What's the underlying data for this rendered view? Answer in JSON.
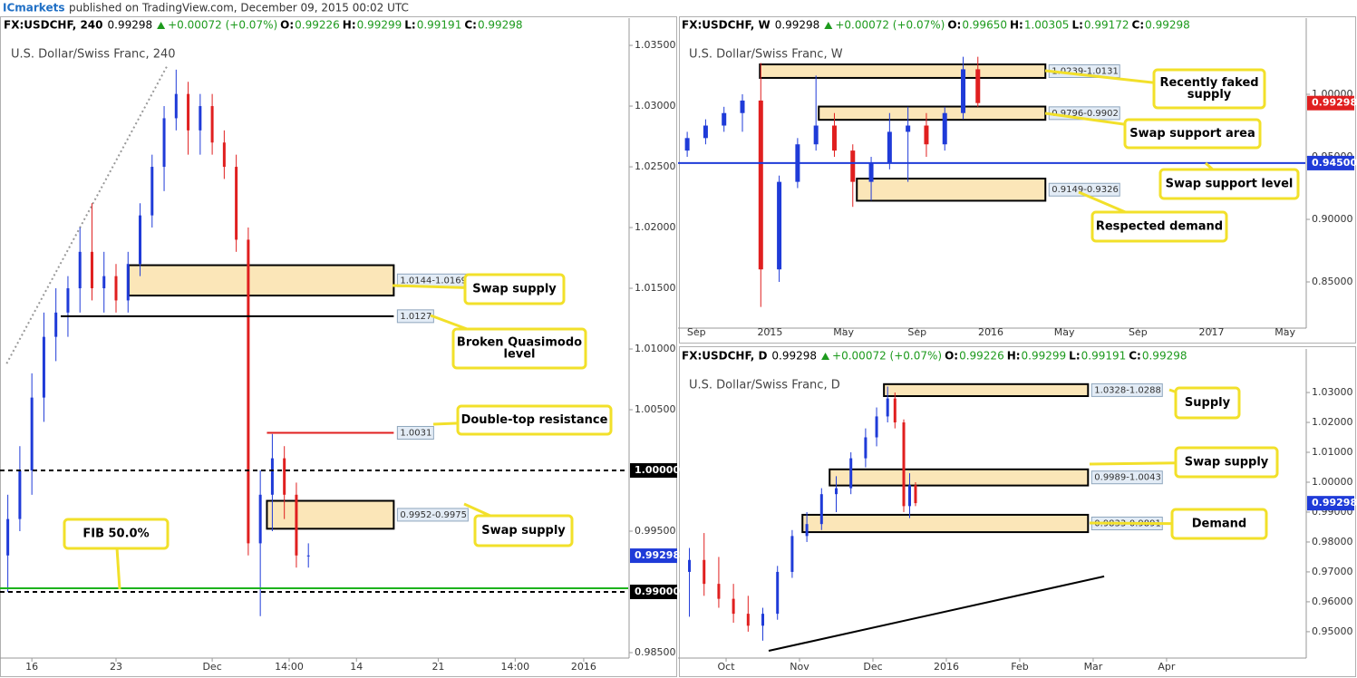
{
  "header": {
    "brand": "ICmarkets",
    "text": "published on TradingView.com, December 09, 2015 00:02 UTC"
  },
  "chart_data": [
    {
      "type": "candlestick",
      "title": "U.S. Dollar/Swiss Franc, 240",
      "quote": {
        "symbol": "FX:USDCHF, 240",
        "price": "0.99298",
        "change": "+0.00072 (+0.07%)",
        "fields": [
          [
            "O:",
            "0.99226"
          ],
          [
            "H:",
            "0.99299"
          ],
          [
            "L:",
            "0.99191"
          ],
          [
            "C:",
            "0.99298"
          ]
        ]
      },
      "x": [
        14,
        15,
        16,
        17,
        18,
        19,
        20,
        21,
        22,
        23,
        24,
        25,
        26,
        27,
        28,
        29,
        30,
        31,
        32,
        33,
        34,
        35,
        36,
        37,
        38,
        39
      ],
      "open": [
        0.993,
        0.996,
        1.0,
        1.006,
        1.011,
        1.013,
        1.015,
        1.018,
        1.015,
        1.016,
        1.014,
        1.017,
        1.021,
        1.025,
        1.029,
        1.031,
        1.028,
        1.03,
        1.027,
        1.025,
        1.019,
        0.994,
        0.998,
        1.001,
        0.998,
        0.993
      ],
      "high": [
        0.998,
        1.002,
        1.008,
        1.013,
        1.015,
        1.016,
        1.02,
        1.022,
        1.018,
        1.017,
        1.018,
        1.022,
        1.026,
        1.03,
        1.033,
        1.032,
        1.031,
        1.031,
        1.028,
        1.026,
        1.02,
        1.0,
        1.003,
        1.002,
        0.999,
        0.994
      ],
      "low": [
        0.99,
        0.995,
        0.998,
        1.004,
        1.009,
        1.011,
        1.013,
        1.014,
        1.013,
        1.013,
        1.013,
        1.016,
        1.02,
        1.023,
        1.028,
        1.026,
        1.026,
        1.026,
        1.024,
        1.018,
        0.993,
        0.988,
        0.995,
        0.996,
        0.992,
        0.992
      ],
      "close": [
        0.996,
        1.0,
        1.006,
        1.011,
        1.013,
        1.015,
        1.018,
        1.015,
        1.016,
        1.014,
        1.017,
        1.021,
        1.025,
        1.029,
        1.031,
        1.028,
        1.03,
        1.027,
        1.025,
        1.019,
        0.994,
        0.998,
        1.001,
        0.998,
        0.993,
        0.993
      ],
      "xlim": [
        13.5,
        65.6
      ],
      "ylim": [
        0.985,
        1.03575
      ],
      "xticks": [
        16,
        23,
        {
          "value": 31,
          "label": "Dec"
        },
        {
          "value": 37.4,
          "label": "14:00"
        },
        {
          "value": 43,
          "label": "14"
        },
        {
          "value": 49.8,
          "label": "21"
        },
        {
          "value": 56.2,
          "label": "14:00"
        },
        {
          "value": 61.9,
          "label": "2016"
        }
      ],
      "yticks": [
        {
          "value": 1.035,
          "label": "1.03500"
        },
        {
          "value": 1.03,
          "label": "1.03000"
        },
        {
          "value": 1.025,
          "label": "1.02500"
        },
        {
          "value": 1.02,
          "label": "1.02000"
        },
        {
          "value": 1.015,
          "label": "1.01500"
        },
        {
          "value": 1.01,
          "label": "1.01000"
        },
        {
          "value": 1.005,
          "label": "1.00500"
        },
        {
          "value": 0.995,
          "label": "0.99500"
        },
        {
          "value": 0.985,
          "label": "0.98500"
        }
      ],
      "up_color": "#1f3bd8",
      "down_color": "#e01f1f",
      "zones": [
        {
          "label": "1.0144-1.0169",
          "low": 1.0144,
          "high": 1.0169,
          "x0": 24.05,
          "x1": 46.1
        },
        {
          "label": "0.9952-0.9975",
          "low": 0.9952,
          "high": 0.9975,
          "x0": 35.55,
          "x1": 46.1
        }
      ],
      "levels": [
        {
          "value": 1.0,
          "color": "#000000",
          "dash": true
        },
        {
          "value": 0.99,
          "color": "#000000",
          "dash": true
        },
        {
          "value": 0.9903,
          "color": "#1db31d",
          "dash": false
        },
        {
          "value": 1.0031,
          "color": "#e01f1f",
          "dash": false,
          "x0": 35.55,
          "x1": 46.1
        },
        {
          "value": 1.0127,
          "color": "#000000",
          "dash": false,
          "x0": 18.4,
          "x1": 46.1
        }
      ],
      "trendlines": [
        {
          "x": [
            13.9,
            27.3
          ],
          "y": [
            1.0088,
            1.0334
          ],
          "color": "#999999",
          "dash": true
        }
      ],
      "price_tags": [
        {
          "value": 1.0,
          "label": "1.00000",
          "color": "#000000"
        },
        {
          "value": 0.99,
          "label": "0.99000",
          "color": "#000000"
        },
        {
          "value": 0.99298,
          "label": "0.99298",
          "color": "#1f3bd8"
        }
      ],
      "callouts": [
        {
          "lines": [
            "Swap supply"
          ]
        },
        {
          "lines": [
            "Broken Quasimodo",
            "level"
          ]
        },
        {
          "lines": [
            "Double-top resistance"
          ]
        },
        {
          "lines": [
            "Swap supply"
          ]
        },
        {
          "lines": [
            "FIB 50.0%"
          ]
        }
      ]
    },
    {
      "type": "candlestick",
      "title": "U.S. Dollar/Swiss Franc, W",
      "quote": {
        "symbol": "FX:USDCHF, W",
        "price": "0.99298",
        "change": "+0.00072 (+0.07%)",
        "fields": [
          [
            "O:",
            "0.99650"
          ],
          [
            "H:",
            "1.00305"
          ],
          [
            "L:",
            "0.99172"
          ],
          [
            "C:",
            "0.99298"
          ]
        ]
      },
      "x": [
        -0.5,
        0.5,
        1.5,
        2.5,
        3.5,
        4.5,
        5.5,
        6.5,
        7.5,
        8.5,
        9.5,
        10.5,
        11.5,
        12.5,
        13.5,
        14.5,
        15.3
      ],
      "open": [
        0.955,
        0.965,
        0.975,
        0.985,
        0.995,
        0.86,
        0.93,
        0.96,
        0.975,
        0.955,
        0.93,
        0.945,
        0.97,
        0.975,
        0.96,
        0.985,
        1.02
      ],
      "high": [
        0.97,
        0.98,
        0.99,
        1.0,
        1.025,
        0.935,
        0.965,
        1.015,
        0.985,
        0.96,
        0.95,
        0.985,
        0.99,
        0.985,
        0.99,
        1.03,
        1.03
      ],
      "low": [
        0.95,
        0.96,
        0.97,
        0.97,
        0.83,
        0.85,
        0.925,
        0.955,
        0.95,
        0.91,
        0.915,
        0.94,
        0.93,
        0.95,
        0.955,
        0.98,
        0.99
      ],
      "close": [
        0.965,
        0.975,
        0.985,
        0.995,
        0.86,
        0.93,
        0.96,
        0.975,
        0.955,
        0.93,
        0.945,
        0.97,
        0.975,
        0.96,
        0.985,
        1.02,
        0.993
      ],
      "xlim": [
        -0.9,
        33.1
      ],
      "ylim": [
        0.8174,
        1.0464
      ],
      "xticks": [
        {
          "value": 0,
          "label": "Sep"
        },
        {
          "value": 4,
          "label": "2015"
        },
        {
          "value": 8,
          "label": "May"
        },
        {
          "value": 12,
          "label": "Sep"
        },
        {
          "value": 16,
          "label": "2016"
        },
        {
          "value": 20,
          "label": "May"
        },
        {
          "value": 24,
          "label": "Sep"
        },
        {
          "value": 28,
          "label": "2017"
        },
        {
          "value": 32,
          "label": "May"
        }
      ],
      "yticks": [
        {
          "value": 1.0,
          "label": "1.00000"
        },
        {
          "value": 0.95,
          "label": "0.95000"
        },
        {
          "value": 0.9,
          "label": "0.90000"
        },
        {
          "value": 0.85,
          "label": "0.85000"
        }
      ],
      "up_color": "#1f3bd8",
      "down_color": "#e01f1f",
      "zones": [
        {
          "label": "1.0239-1.0131",
          "low": 1.0131,
          "high": 1.0239,
          "x0": 3.45,
          "x1": 18.97
        },
        {
          "label": "0.9796-0.9902",
          "low": 0.9796,
          "high": 0.9902,
          "x0": 6.65,
          "x1": 18.97
        },
        {
          "label": "0.9149-0.9326",
          "low": 0.9149,
          "high": 0.9326,
          "x0": 8.72,
          "x1": 18.97
        }
      ],
      "levels": [
        {
          "value": 0.945,
          "color": "#1f3bd8",
          "dash": false
        }
      ],
      "trendlines": [],
      "price_tags": [
        {
          "value": 0.945,
          "label": "0.94500",
          "color": "#1f3bd8"
        },
        {
          "value": 0.99298,
          "label": "0.99298",
          "color": "#e01f1f"
        }
      ],
      "callouts": [
        {
          "lines": [
            "Recently faked",
            "supply"
          ]
        },
        {
          "lines": [
            "Swap support area"
          ]
        },
        {
          "lines": [
            "Swap support level"
          ]
        },
        {
          "lines": [
            "Respected demand"
          ]
        }
      ]
    },
    {
      "type": "candlestick",
      "title": "U.S. Dollar/Swiss Franc, D",
      "quote": {
        "symbol": "FX:USDCHF, D",
        "price": "0.99298",
        "change": "+0.00072 (+0.07%)",
        "fields": [
          [
            "O:",
            "0.99226"
          ],
          [
            "H:",
            "0.99299"
          ],
          [
            "L:",
            "0.99191"
          ],
          [
            "C:",
            "0.99298"
          ]
        ]
      },
      "x": [
        -0.5,
        -0.3,
        -0.1,
        0.1,
        0.3,
        0.5,
        0.7,
        0.9,
        1.1,
        1.3,
        1.5,
        1.7,
        1.9,
        2.05,
        2.2,
        2.3,
        2.42,
        2.5,
        2.58
      ],
      "open": [
        0.97,
        0.974,
        0.966,
        0.961,
        0.956,
        0.952,
        0.956,
        0.97,
        0.982,
        0.986,
        0.996,
        0.998,
        1.008,
        1.015,
        1.022,
        1.028,
        1.02,
        0.992,
        0.999
      ],
      "high": [
        0.978,
        0.983,
        0.975,
        0.966,
        0.962,
        0.958,
        0.972,
        0.984,
        0.99,
        0.998,
        1.002,
        1.01,
        1.018,
        1.025,
        1.032,
        1.03,
        1.021,
        1.003,
        1.0
      ],
      "low": [
        0.955,
        0.962,
        0.958,
        0.953,
        0.95,
        0.947,
        0.954,
        0.968,
        0.98,
        0.984,
        0.99,
        0.996,
        1.005,
        1.012,
        1.02,
        1.018,
        0.99,
        0.988,
        0.992
      ],
      "close": [
        0.974,
        0.966,
        0.961,
        0.956,
        0.952,
        0.956,
        0.97,
        0.982,
        0.986,
        0.996,
        0.998,
        1.008,
        1.015,
        1.022,
        1.028,
        1.02,
        0.992,
        0.999,
        0.993
      ],
      "xlim": [
        -0.63,
        7.89
      ],
      "ylim": [
        0.943,
        1.0385
      ],
      "xticks": [
        {
          "value": 0,
          "label": "Oct"
        },
        {
          "value": 1,
          "label": "Nov"
        },
        {
          "value": 2,
          "label": "Dec"
        },
        {
          "value": 3,
          "label": "2016"
        },
        {
          "value": 4,
          "label": "Feb"
        },
        {
          "value": 5,
          "label": "Mar"
        },
        {
          "value": 6,
          "label": "Apr"
        }
      ],
      "yticks": [
        {
          "value": 1.03,
          "label": "1.03000"
        },
        {
          "value": 1.02,
          "label": "1.02000"
        },
        {
          "value": 1.01,
          "label": "1.01000"
        },
        {
          "value": 1.0,
          "label": "1.00000"
        },
        {
          "value": 0.99,
          "label": "0.99000"
        },
        {
          "value": 0.98,
          "label": "0.98000"
        },
        {
          "value": 0.97,
          "label": "0.97000"
        },
        {
          "value": 0.96,
          "label": "0.96000"
        },
        {
          "value": 0.95,
          "label": "0.95000"
        }
      ],
      "up_color": "#1f3bd8",
      "down_color": "#e01f1f",
      "zones": [
        {
          "label": "1.0328-1.0288",
          "low": 1.0288,
          "high": 1.0328,
          "x0": 2.15,
          "x1": 4.93
        },
        {
          "label": "0.9989-1.0043",
          "low": 0.9989,
          "high": 1.0043,
          "x0": 1.41,
          "x1": 4.93
        },
        {
          "label": "0.9833-0.9891",
          "low": 0.9833,
          "high": 0.9891,
          "x0": 1.04,
          "x1": 4.93
        }
      ],
      "levels": [],
      "trendlines": [
        {
          "x": [
            0.58,
            5.15
          ],
          "y": [
            0.9436,
            0.9685
          ],
          "color": "#000000",
          "dash": false
        }
      ],
      "price_tags": [
        {
          "value": 0.99298,
          "label": "0.99298",
          "color": "#1f3bd8"
        }
      ],
      "callouts": [
        {
          "lines": [
            "Supply"
          ]
        },
        {
          "lines": [
            "Swap supply"
          ]
        },
        {
          "lines": [
            "Demand"
          ]
        }
      ]
    }
  ]
}
